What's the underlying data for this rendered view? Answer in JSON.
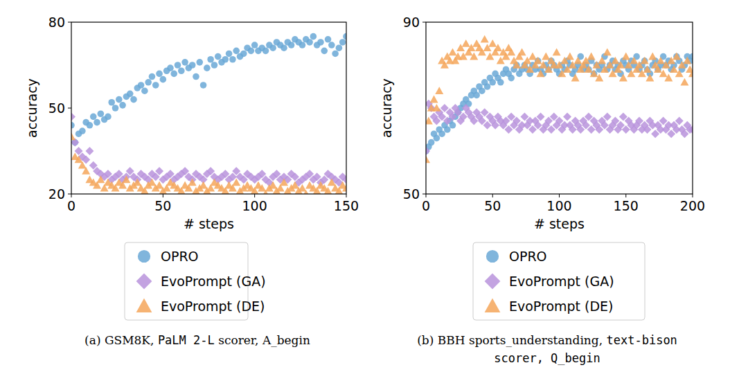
{
  "chart_data": [
    {
      "type": "scatter",
      "caption": [
        "(a) GSM8K, ",
        "PaLM 2-L",
        " scorer, A_begin"
      ],
      "x_label": "# steps",
      "y_label": "accuracy",
      "xlim": [
        0,
        150
      ],
      "xticks": [
        0,
        50,
        100,
        150
      ],
      "ylim": [
        20,
        80
      ],
      "yticks": [
        20,
        50,
        80
      ],
      "grid": false,
      "legend": "below",
      "x": [
        0,
        2,
        4,
        6,
        8,
        10,
        12,
        14,
        16,
        18,
        20,
        22,
        24,
        26,
        28,
        30,
        32,
        34,
        36,
        38,
        40,
        42,
        44,
        46,
        48,
        50,
        52,
        54,
        56,
        58,
        60,
        62,
        64,
        66,
        68,
        70,
        72,
        74,
        76,
        78,
        80,
        82,
        84,
        86,
        88,
        90,
        92,
        94,
        96,
        98,
        100,
        102,
        104,
        106,
        108,
        110,
        112,
        114,
        116,
        118,
        120,
        122,
        124,
        126,
        128,
        130,
        132,
        134,
        136,
        138,
        140,
        142,
        144,
        146,
        148,
        150
      ],
      "series": [
        {
          "name": "OPRO",
          "color": "#6aa8d6",
          "marker": "circle",
          "values": [
            44,
            38,
            41,
            42,
            45,
            44,
            47,
            45,
            48,
            46,
            47,
            52,
            50,
            53,
            51,
            54,
            55,
            53,
            57,
            58,
            56,
            59,
            61,
            58,
            62,
            60,
            63,
            64,
            62,
            65,
            63,
            66,
            64,
            65,
            61,
            66,
            58,
            64,
            67,
            65,
            68,
            66,
            67,
            69,
            67,
            70,
            68,
            69,
            71,
            70,
            72,
            70,
            71,
            70,
            72,
            71,
            73,
            72,
            71,
            73,
            72,
            74,
            73,
            72,
            74,
            73,
            75,
            72,
            73,
            70,
            74,
            72,
            69,
            71,
            73,
            75
          ]
        },
        {
          "name": "EvoPrompt (GA)",
          "color": "#b993dc",
          "marker": "diamond",
          "values": [
            47,
            38,
            35,
            33,
            32,
            35,
            30,
            28,
            27,
            26,
            27,
            25,
            26,
            27,
            25,
            26,
            28,
            26,
            25,
            27,
            26,
            25,
            27,
            26,
            28,
            25,
            26,
            27,
            25,
            26,
            27,
            28,
            26,
            25,
            27,
            26,
            25,
            27,
            28,
            26,
            25,
            26,
            27,
            25,
            26,
            28,
            26,
            25,
            27,
            26,
            25,
            26,
            27,
            25,
            24,
            26,
            27,
            25,
            26,
            25,
            27,
            26,
            24,
            25,
            26,
            27,
            25,
            26,
            24,
            25,
            27,
            26,
            25,
            24,
            26,
            25
          ]
        },
        {
          "name": "EvoPrompt (DE)",
          "color": "#f5a65b",
          "marker": "triangle",
          "values": [
            40,
            33,
            32,
            30,
            28,
            25,
            24,
            23,
            25,
            22,
            24,
            23,
            22,
            24,
            23,
            25,
            22,
            23,
            24,
            22,
            21,
            23,
            24,
            22,
            23,
            21,
            22,
            24,
            23,
            22,
            21,
            23,
            22,
            24,
            21,
            22,
            23,
            21,
            22,
            24,
            23,
            22,
            21,
            23,
            22,
            24,
            21,
            22,
            23,
            22,
            21,
            23,
            22,
            20,
            22,
            23,
            21,
            22,
            24,
            21,
            22,
            23,
            21,
            22,
            20,
            23,
            22,
            21,
            23,
            22,
            21,
            24,
            22,
            21,
            23,
            22
          ]
        }
      ]
    },
    {
      "type": "scatter",
      "caption": [
        "(b) BBH sports_understanding, ",
        "text-bison",
        "\n",
        "scorer, Q_begin"
      ],
      "x_label": "# steps",
      "y_label": "accuracy",
      "xlim": [
        0,
        200
      ],
      "xticks": [
        0,
        50,
        100,
        150,
        200
      ],
      "ylim": [
        50,
        90
      ],
      "yticks": [
        50,
        90
      ],
      "grid": false,
      "legend": "below",
      "x": [
        0,
        2,
        4,
        6,
        8,
        10,
        12,
        14,
        16,
        18,
        20,
        22,
        24,
        26,
        28,
        30,
        32,
        34,
        36,
        38,
        40,
        42,
        44,
        46,
        48,
        50,
        52,
        54,
        56,
        58,
        60,
        62,
        64,
        66,
        68,
        70,
        72,
        74,
        76,
        78,
        80,
        82,
        84,
        86,
        88,
        90,
        92,
        94,
        96,
        98,
        100,
        102,
        104,
        106,
        108,
        110,
        112,
        114,
        116,
        118,
        120,
        122,
        124,
        126,
        128,
        130,
        132,
        134,
        136,
        138,
        140,
        142,
        144,
        146,
        148,
        150,
        152,
        154,
        156,
        158,
        160,
        162,
        164,
        166,
        168,
        170,
        172,
        174,
        176,
        178,
        180,
        182,
        184,
        186,
        188,
        190,
        192,
        194,
        196,
        198,
        200
      ],
      "series": [
        {
          "name": "OPRO",
          "color": "#6aa8d6",
          "marker": "circle",
          "values": [
            60,
            61,
            62,
            64,
            63,
            65,
            64,
            66,
            65,
            67,
            66,
            68,
            69,
            70,
            71,
            72,
            71,
            73,
            74,
            73,
            75,
            74,
            76,
            75,
            77,
            76,
            78,
            77,
            76,
            78,
            79,
            78,
            77,
            79,
            80,
            78,
            79,
            80,
            79,
            78,
            80,
            79,
            81,
            79,
            78,
            80,
            79,
            81,
            80,
            79,
            78,
            80,
            79,
            81,
            80,
            78,
            79,
            80,
            82,
            79,
            80,
            79,
            81,
            78,
            80,
            79,
            80,
            82,
            79,
            80,
            81,
            79,
            80,
            78,
            81,
            80,
            79,
            81,
            80,
            82,
            79,
            80,
            81,
            79,
            78,
            80,
            81,
            79,
            80,
            82,
            80,
            81,
            79,
            80,
            82,
            81,
            79,
            80,
            82,
            81,
            82
          ]
        },
        {
          "name": "EvoPrompt (GA)",
          "color": "#b993dc",
          "marker": "diamond",
          "values": [
            60,
            71,
            70,
            68,
            67,
            69,
            68,
            70,
            67,
            69,
            68,
            70,
            69,
            67,
            68,
            70,
            69,
            68,
            67,
            69,
            68,
            67,
            69,
            66,
            68,
            67,
            66,
            68,
            67,
            66,
            67,
            65,
            68,
            66,
            67,
            65,
            66,
            68,
            66,
            67,
            65,
            67,
            66,
            68,
            65,
            66,
            67,
            65,
            68,
            66,
            67,
            65,
            66,
            68,
            66,
            65,
            67,
            66,
            65,
            67,
            66,
            68,
            65,
            67,
            66,
            65,
            67,
            66,
            68,
            65,
            66,
            67,
            65,
            66,
            68,
            65,
            67,
            66,
            65,
            66,
            67,
            65,
            66,
            65,
            67,
            66,
            64,
            66,
            65,
            67,
            65,
            66,
            64,
            66,
            65,
            67,
            65,
            64,
            66,
            65,
            65
          ]
        },
        {
          "name": "EvoPrompt (DE)",
          "color": "#f5a65b",
          "marker": "triangle",
          "values": [
            58,
            67,
            70,
            72,
            70,
            74,
            81,
            80,
            82,
            81,
            83,
            81,
            82,
            84,
            82,
            85,
            83,
            84,
            82,
            85,
            84,
            83,
            86,
            84,
            82,
            85,
            83,
            84,
            81,
            83,
            82,
            84,
            83,
            81,
            80,
            82,
            83,
            80,
            81,
            79,
            82,
            80,
            81,
            78,
            80,
            82,
            79,
            81,
            80,
            83,
            80,
            78,
            81,
            79,
            82,
            80,
            77,
            81,
            79,
            80,
            81,
            79,
            82,
            78,
            80,
            77,
            81,
            79,
            83,
            80,
            78,
            81,
            79,
            80,
            77,
            82,
            80,
            78,
            81,
            79,
            80,
            78,
            81,
            79,
            77,
            82,
            80,
            79,
            81,
            78,
            80,
            77,
            81,
            79,
            82,
            78,
            80,
            76,
            81,
            79,
            78
          ]
        }
      ]
    }
  ]
}
